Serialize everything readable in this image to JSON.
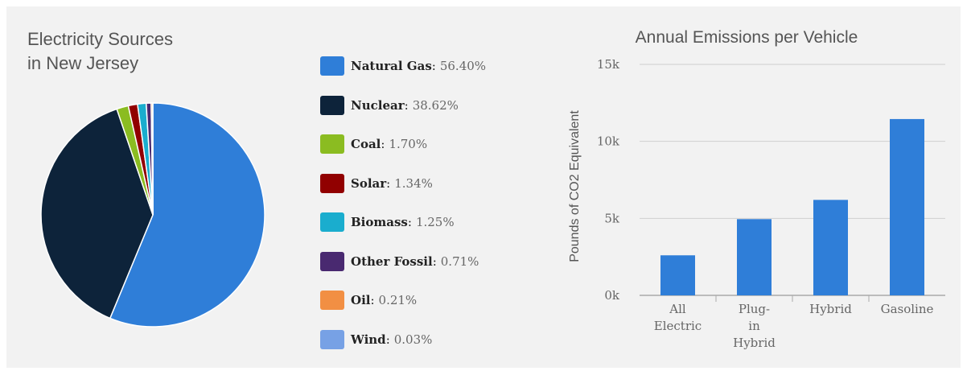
{
  "chart_data": [
    {
      "type": "pie",
      "title_lines": [
        "Electricity Sources",
        "in New Jersey"
      ],
      "slices": [
        {
          "name": "Natural Gas",
          "value": 56.4,
          "label": "56.40%",
          "color": "#2f7ed8"
        },
        {
          "name": "Nuclear",
          "value": 38.62,
          "label": "38.62%",
          "color": "#0d233a"
        },
        {
          "name": "Coal",
          "value": 1.7,
          "label": "1.70%",
          "color": "#8bbc21"
        },
        {
          "name": "Solar",
          "value": 1.34,
          "label": "1.34%",
          "color": "#910000"
        },
        {
          "name": "Biomass",
          "value": 1.25,
          "label": "1.25%",
          "color": "#1aadce"
        },
        {
          "name": "Other Fossil",
          "value": 0.71,
          "label": "0.71%",
          "color": "#492970"
        },
        {
          "name": "Oil",
          "value": 0.21,
          "label": "0.21%",
          "color": "#f28f43"
        },
        {
          "name": "Wind",
          "value": 0.03,
          "label": "0.03%",
          "color": "#77a1e5"
        }
      ],
      "legend_position": "right"
    },
    {
      "type": "bar",
      "title": "Annual Emissions per Vehicle",
      "ylabel": "Pounds of CO2 Equivalent",
      "xlabel": "",
      "categories": [
        {
          "lines": [
            "All",
            "Electric"
          ]
        },
        {
          "lines": [
            "Plug-",
            "in",
            "Hybrid"
          ]
        },
        {
          "lines": [
            "Hybrid"
          ]
        },
        {
          "lines": [
            "Gasoline"
          ]
        }
      ],
      "values": [
        2600,
        4950,
        6200,
        11450
      ],
      "ylim": [
        0,
        15000
      ],
      "yticks": [
        {
          "value": 0,
          "label": "0k"
        },
        {
          "value": 5000,
          "label": "5k"
        },
        {
          "value": 10000,
          "label": "10k"
        },
        {
          "value": 15000,
          "label": "15k"
        }
      ],
      "color": "#2f7ed8",
      "grid": true
    }
  ]
}
